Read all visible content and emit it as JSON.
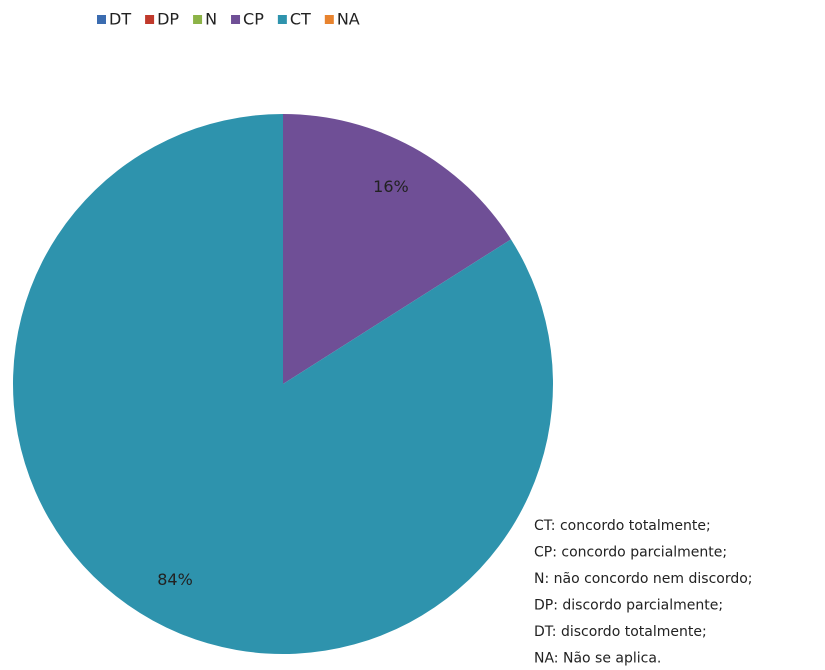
{
  "chart_data": {
    "type": "pie",
    "categories": [
      "DT",
      "DP",
      "N",
      "CP",
      "CT",
      "NA"
    ],
    "values": [
      0,
      0,
      0,
      16,
      84,
      0
    ],
    "value_labels": [
      null,
      null,
      null,
      "16%",
      "84%",
      null
    ],
    "colors": [
      "#3b6cb0",
      "#c0392b",
      "#8cb347",
      "#6f4f96",
      "#2e93ad",
      "#e8832e"
    ],
    "legend": "top",
    "annotations": [
      "CT: concordo totalmente;",
      "CP: concordo parcialmente;",
      "N: não concordo nem discordo;",
      "DP: discordo parcialmente;",
      "DT: discordo totalmente;",
      "NA: Não se aplica."
    ]
  }
}
